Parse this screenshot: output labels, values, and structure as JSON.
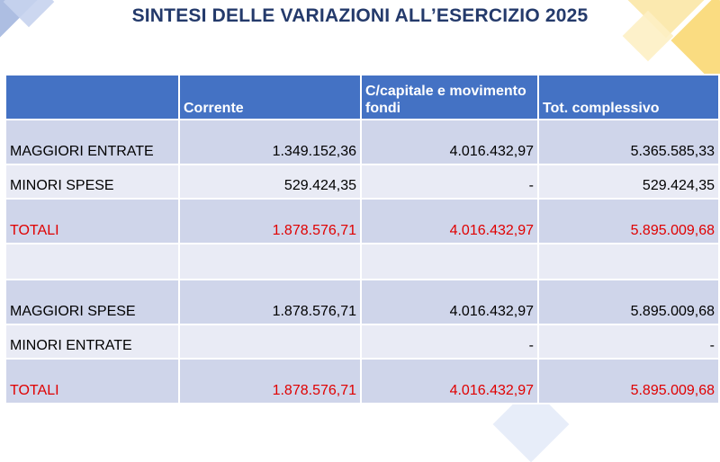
{
  "title": "SINTESI DELLE VARIAZIONI ALL’ESERCIZIO 2025",
  "table": {
    "headers": [
      "",
      "Corrente",
      "C/capitale e movimento fondi",
      "Tot. complessivo"
    ],
    "rows": [
      {
        "label": "MAGGIORI ENTRATE",
        "corrente": "1.349.152,36",
        "capitale": "4.016.432,97",
        "totale": "5.365.585,33"
      },
      {
        "label": "MINORI SPESE",
        "corrente": "529.424,35",
        "capitale": "-",
        "totale": "529.424,35"
      },
      {
        "label": "TOTALI",
        "corrente": "1.878.576,71",
        "capitale": "4.016.432,97",
        "totale": "5.895.009,68"
      },
      {
        "label": "",
        "corrente": "",
        "capitale": "",
        "totale": ""
      },
      {
        "label": "MAGGIORI SPESE",
        "corrente": "1.878.576,71",
        "capitale": "4.016.432,97",
        "totale": "5.895.009,68"
      },
      {
        "label": "MINORI ENTRATE",
        "corrente": "",
        "capitale": "-",
        "totale": "-"
      },
      {
        "label": "TOTALI",
        "corrente": "1.878.576,71",
        "capitale": "4.016.432,97",
        "totale": "5.895.009,68"
      }
    ]
  },
  "colors": {
    "header_bg": "#4472c4",
    "row_dark": "#cfd5ea",
    "row_light": "#e9ebf5",
    "total_text": "#e00000",
    "title_text": "#243a6b"
  }
}
